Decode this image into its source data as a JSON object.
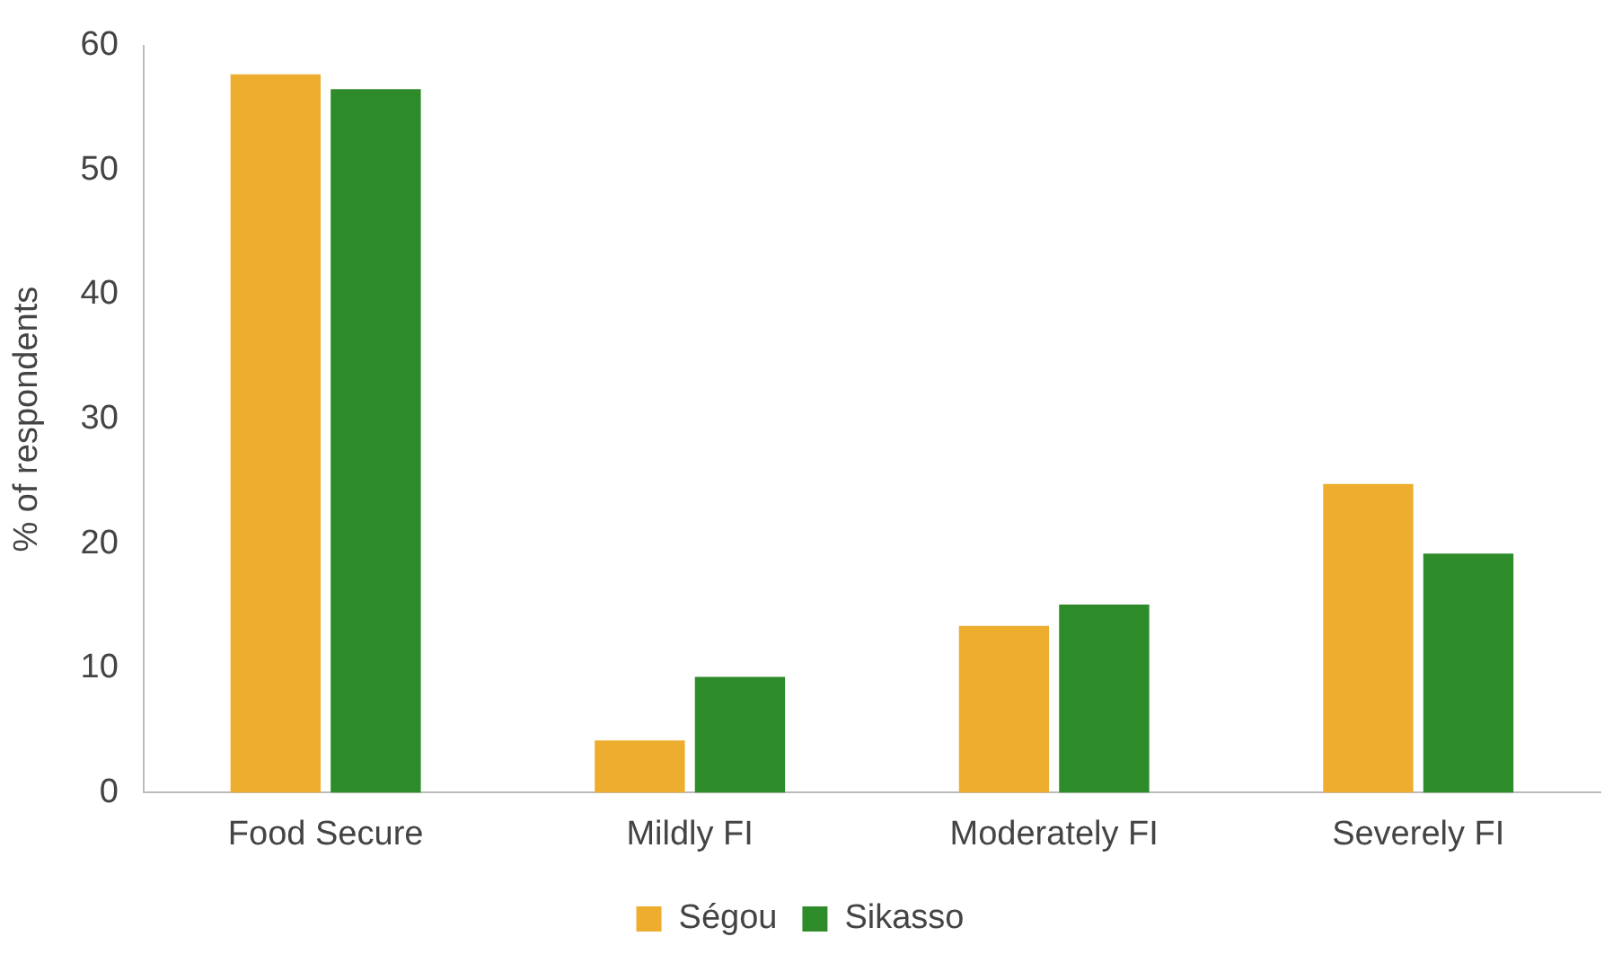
{
  "chart_data": {
    "type": "bar",
    "ylabel": "% of respondents",
    "categories": [
      "Food Secure",
      "Mildly FI",
      "Moderately FI",
      "Severely FI"
    ],
    "series": [
      {
        "name": "Ségou",
        "color": "#edad2f",
        "values": [
          57.7,
          4.2,
          13.4,
          24.8
        ]
      },
      {
        "name": "Sikasso",
        "color": "#2e8b2a",
        "values": [
          56.5,
          9.3,
          15.1,
          19.2
        ]
      }
    ],
    "ylim": [
      0,
      60
    ],
    "yticks": [
      0,
      10,
      20,
      30,
      40,
      50,
      60
    ],
    "grid": false,
    "legend": "bottom"
  }
}
